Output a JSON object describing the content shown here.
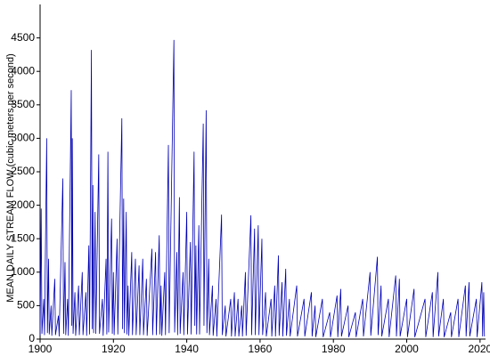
{
  "chart_data": {
    "type": "line",
    "y_label": "MEAN DAILY STREAM FLOW (cubic meters per second)",
    "xlim": [
      1900,
      2021.5
    ],
    "xticks": [
      1900,
      1920,
      1940,
      1960,
      1980,
      2000,
      2020
    ],
    "ylim": [
      0,
      5000
    ],
    "yticks": [
      0,
      500,
      1000,
      1500,
      2000,
      2500,
      3000,
      3500,
      4000,
      4500
    ],
    "grid": false,
    "series": [
      {
        "color": "#0000b4",
        "x": [
          1900,
          1900.3,
          1900.5,
          1901,
          1901.2,
          1901.8,
          1902,
          1902.3,
          1902.5,
          1903,
          1903.2,
          1904,
          1904.2,
          1905,
          1905.2,
          1906.2,
          1906.4,
          1906.8,
          1907,
          1907.5,
          1907.7,
          1908.5,
          1908.65,
          1908.8,
          1909,
          1909.5,
          1909.7,
          1910.5,
          1910.7,
          1911.5,
          1911.7,
          1912.5,
          1912.7,
          1913.3,
          1913.5,
          1914,
          1914.2,
          1914.4,
          1914.6,
          1915,
          1915.2,
          1916,
          1916.2,
          1917,
          1917.2,
          1918,
          1918.2,
          1918.5,
          1918.7,
          1919.5,
          1919.7,
          1920,
          1920.2,
          1921,
          1921.2,
          1922.3,
          1922.5,
          1922.8,
          1923,
          1923.5,
          1923.7,
          1924,
          1924.2,
          1925,
          1925.2,
          1926,
          1926.2,
          1927,
          1927.2,
          1928,
          1928.2,
          1929,
          1929.2,
          1930.5,
          1930.7,
          1931.5,
          1931.7,
          1932.5,
          1932.7,
          1933,
          1933.2,
          1934,
          1934.2,
          1935,
          1935.2,
          1936.5,
          1936.7,
          1937.3,
          1937.5,
          1938,
          1938.2,
          1939,
          1939.2,
          1940,
          1940.2,
          1941,
          1941.2,
          1942,
          1942.2,
          1942.5,
          1942.7,
          1943.3,
          1943.5,
          1944.5,
          1944.7,
          1945.3,
          1945.5,
          1946,
          1946.2,
          1947,
          1947.2,
          1948,
          1948.2,
          1949.5,
          1949.7,
          1950.5,
          1950.7,
          1952,
          1952.2,
          1953,
          1953.2,
          1954,
          1954.2,
          1955,
          1955.2,
          1956,
          1956.2,
          1957.5,
          1957.7,
          1958.5,
          1958.7,
          1959.5,
          1959.7,
          1960.5,
          1960.7,
          1961.5,
          1961.7,
          1963,
          1963.2,
          1964,
          1964.2,
          1965,
          1965.2,
          1966,
          1966.2,
          1967,
          1967.2,
          1968,
          1968.2,
          1970,
          1970.2,
          1972,
          1972.2,
          1974,
          1974.2,
          1975,
          1975.2,
          1977,
          1977.2,
          1979,
          1979.2,
          1981,
          1981.2,
          1982,
          1982.2,
          1984,
          1984.2,
          1986,
          1986.2,
          1988,
          1988.2,
          1990,
          1990.2,
          1992,
          1992.2,
          1993,
          1993.2,
          1995,
          1995.2,
          1997,
          1997.2,
          1998,
          1998.2,
          2000,
          2000.2,
          2002,
          2002.2,
          2005,
          2005.2,
          2007,
          2007.2,
          2008.5,
          2008.7,
          2010,
          2010.2,
          2012,
          2012.2,
          2014,
          2014.2,
          2016,
          2016.2,
          2017,
          2017.2,
          2019,
          2019.2,
          2020.5,
          2020.7,
          2021,
          2021.2
        ],
        "values": [
          50,
          1950,
          80,
          600,
          60,
          3000,
          90,
          1200,
          70,
          500,
          50,
          900,
          60,
          350,
          40,
          2400,
          80,
          1150,
          60,
          600,
          50,
          3720,
          200,
          3000,
          80,
          700,
          50,
          800,
          60,
          1000,
          60,
          700,
          50,
          1400,
          70,
          4320,
          150,
          2300,
          90,
          1900,
          80,
          2760,
          80,
          600,
          50,
          1200,
          70,
          2800,
          100,
          1800,
          80,
          1000,
          60,
          1500,
          70,
          3300,
          150,
          2100,
          90,
          1900,
          70,
          800,
          50,
          1300,
          60,
          1200,
          60,
          1100,
          60,
          1200,
          60,
          900,
          50,
          1350,
          60,
          1300,
          60,
          1550,
          70,
          800,
          50,
          1000,
          60,
          2900,
          90,
          4470,
          100,
          1300,
          60,
          2120,
          80,
          1000,
          60,
          1900,
          70,
          1450,
          70,
          2800,
          200,
          1400,
          70,
          1700,
          70,
          3220,
          200,
          3420,
          90,
          1200,
          60,
          800,
          50,
          600,
          40,
          1860,
          60,
          500,
          40,
          600,
          40,
          700,
          40,
          600,
          40,
          500,
          40,
          1000,
          50,
          1850,
          60,
          1650,
          60,
          1700,
          60,
          1500,
          60,
          700,
          40,
          600,
          40,
          800,
          40,
          1250,
          50,
          850,
          40,
          1050,
          50,
          600,
          40,
          800,
          40,
          600,
          40,
          700,
          40,
          500,
          30,
          600,
          30,
          400,
          30,
          650,
          30,
          750,
          40,
          500,
          30,
          400,
          30,
          600,
          40,
          1000,
          50,
          1230,
          60,
          800,
          40,
          600,
          30,
          950,
          40,
          900,
          40,
          600,
          30,
          750,
          30,
          600,
          30,
          700,
          30,
          1000,
          40,
          600,
          30,
          400,
          30,
          600,
          30,
          800,
          40,
          850,
          40,
          600,
          30,
          850,
          40,
          700,
          40
        ]
      }
    ]
  }
}
